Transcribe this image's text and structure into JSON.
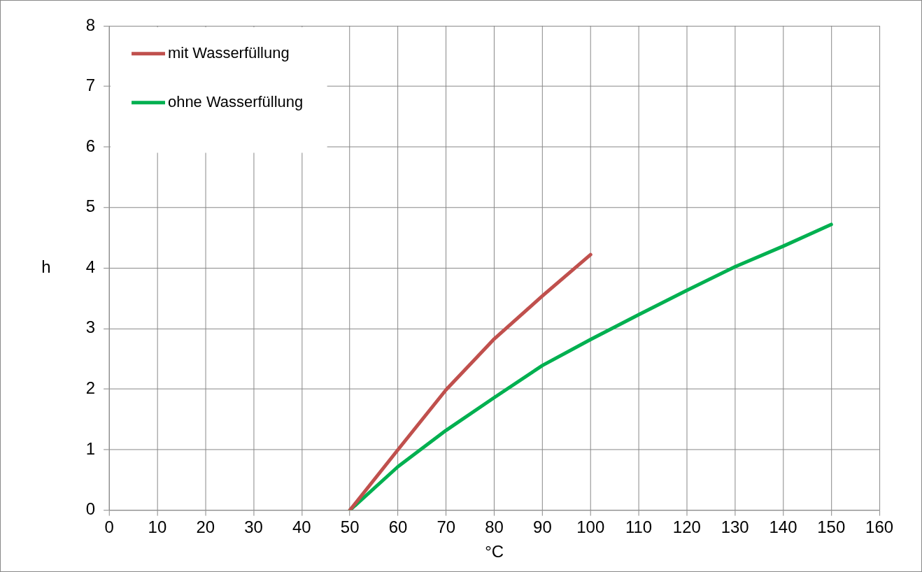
{
  "chart_data": {
    "type": "line",
    "xlabel": "°C",
    "ylabel": "h",
    "xlim": [
      0,
      160
    ],
    "xticks": [
      0,
      10,
      20,
      30,
      40,
      50,
      60,
      70,
      80,
      90,
      100,
      110,
      120,
      130,
      140,
      150,
      160
    ],
    "ylim": [
      0,
      8
    ],
    "yticks": [
      0,
      1,
      2,
      3,
      4,
      5,
      6,
      7,
      8
    ],
    "grid": true,
    "legend": "top left",
    "marker": "none",
    "line_style": "solid",
    "series": [
      {
        "name": "mit Wasserfüllung",
        "color": "#c0504d",
        "x": [
          50,
          60,
          70,
          80,
          90,
          100
        ],
        "values": [
          0,
          1.0,
          1.99,
          2.83,
          3.54,
          4.22
        ]
      },
      {
        "name": "ohne Wasserfüllung",
        "color": "#00b050",
        "x": [
          50,
          60,
          70,
          80,
          90,
          100,
          110,
          120,
          130,
          140,
          150
        ],
        "values": [
          0,
          0.72,
          1.32,
          1.86,
          2.39,
          2.82,
          3.23,
          3.63,
          4.02,
          4.36,
          4.72
        ]
      }
    ]
  }
}
